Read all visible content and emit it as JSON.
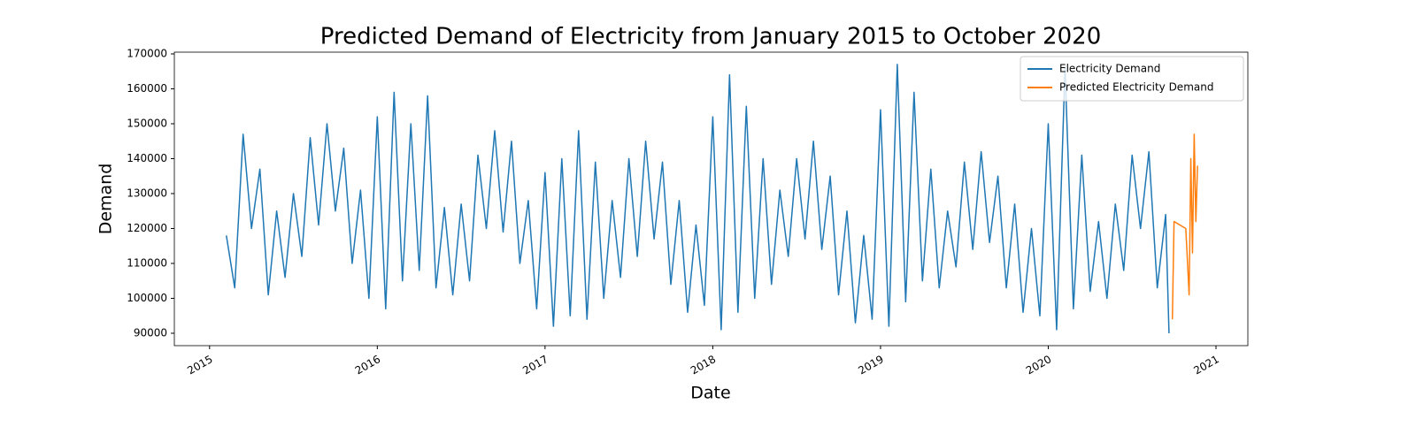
{
  "chart_data": {
    "type": "line",
    "title": "Predicted Demand of Electricity from January 2015 to October 2020",
    "x_label": "Date",
    "y_label": "Demand",
    "xlim": [
      2014.79,
      2021.19
    ],
    "xticks": [
      2015,
      2016,
      2017,
      2018,
      2019,
      2020,
      2021
    ],
    "ylim": [
      86450,
      170500
    ],
    "yticks": [
      90000,
      100000,
      110000,
      120000,
      130000,
      140000,
      150000,
      160000,
      170000
    ],
    "legend": "upper right",
    "series": [
      {
        "name": "Electricity Demand",
        "color": "#1f77b4",
        "x": [
          2015.1,
          2015.15,
          2015.2,
          2015.25,
          2015.3,
          2015.35,
          2015.4,
          2015.45,
          2015.5,
          2015.55,
          2015.6,
          2015.65,
          2015.7,
          2015.75,
          2015.8,
          2015.85,
          2015.9,
          2015.95,
          2016,
          2016.05,
          2016.1,
          2016.15,
          2016.2,
          2016.25,
          2016.3,
          2016.35,
          2016.4,
          2016.45,
          2016.5,
          2016.55,
          2016.6,
          2016.65,
          2016.7,
          2016.75,
          2016.8,
          2016.85,
          2016.9,
          2016.95,
          2017,
          2017.05,
          2017.1,
          2017.15,
          2017.2,
          2017.25,
          2017.3,
          2017.35,
          2017.4,
          2017.45,
          2017.5,
          2017.55,
          2017.6,
          2017.65,
          2017.7,
          2017.75,
          2017.8,
          2017.85,
          2017.9,
          2017.95,
          2018,
          2018.05,
          2018.1,
          2018.15,
          2018.2,
          2018.25,
          2018.3,
          2018.35,
          2018.4,
          2018.45,
          2018.5,
          2018.55,
          2018.6,
          2018.65,
          2018.7,
          2018.75,
          2018.8,
          2018.85,
          2018.9,
          2018.95,
          2019,
          2019.05,
          2019.1,
          2019.15,
          2019.2,
          2019.25,
          2019.3,
          2019.35,
          2019.4,
          2019.45,
          2019.5,
          2019.55,
          2019.6,
          2019.65,
          2019.7,
          2019.75,
          2019.8,
          2019.85,
          2019.9,
          2019.95,
          2020,
          2020.05,
          2020.1,
          2020.15,
          2020.2,
          2020.25,
          2020.3,
          2020.35,
          2020.4,
          2020.45,
          2020.5,
          2020.55,
          2020.6,
          2020.65,
          2020.7,
          2020.72
        ],
        "values": [
          118000,
          103000,
          147000,
          120000,
          137000,
          101000,
          125000,
          106000,
          130000,
          112000,
          146000,
          121000,
          150000,
          125000,
          143000,
          110000,
          131000,
          100000,
          152000,
          97000,
          159000,
          105000,
          150000,
          108000,
          158000,
          103000,
          126000,
          101000,
          127000,
          105000,
          141000,
          120000,
          148000,
          119000,
          145000,
          110000,
          128000,
          97000,
          136000,
          92000,
          140000,
          95000,
          148000,
          94000,
          139000,
          100000,
          128000,
          106000,
          140000,
          112000,
          145000,
          117000,
          139000,
          104000,
          128000,
          96000,
          121000,
          98000,
          152000,
          91000,
          164000,
          96000,
          155000,
          100000,
          140000,
          104000,
          131000,
          112000,
          140000,
          117000,
          145000,
          114000,
          135000,
          101000,
          125000,
          93000,
          118000,
          94000,
          154000,
          92000,
          167000,
          99000,
          159000,
          105000,
          137000,
          103000,
          125000,
          109000,
          139000,
          114000,
          142000,
          116000,
          135000,
          103000,
          127000,
          96000,
          120000,
          95000,
          150000,
          91000,
          166000,
          97000,
          141000,
          102000,
          122000,
          100000,
          127000,
          108000,
          141000,
          120000,
          142000,
          103000,
          124000,
          90000
        ]
      },
      {
        "name": "Predicted Electricity Demand",
        "color": "#ff7f0e",
        "x": [
          2020.74,
          2020.75,
          2020.82,
          2020.84,
          2020.85,
          2020.86,
          2020.87,
          2020.88,
          2020.89
        ],
        "values": [
          94000,
          122000,
          120000,
          101000,
          140000,
          113000,
          147000,
          122000,
          138000
        ]
      }
    ]
  }
}
